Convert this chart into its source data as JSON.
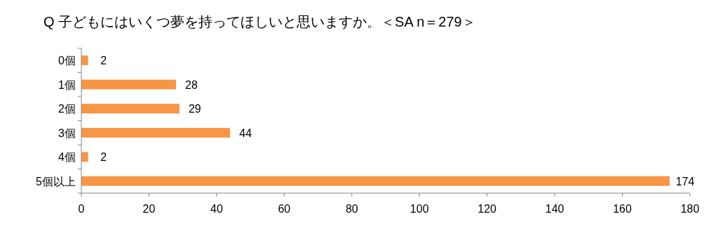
{
  "chart_data": {
    "type": "bar",
    "orientation": "horizontal",
    "title": "Q 子どもにはいくつ夢を持ってほしいと思いますか。＜SA n＝279＞",
    "categories": [
      "0個",
      "1個",
      "2個",
      "3個",
      "4個",
      "5個以上"
    ],
    "values": [
      2,
      28,
      29,
      44,
      2,
      174
    ],
    "color": "#f79646",
    "xlim": [
      0,
      180
    ],
    "xticks": [
      0,
      20,
      40,
      60,
      80,
      100,
      120,
      140,
      160,
      180
    ],
    "data_labels": true
  }
}
